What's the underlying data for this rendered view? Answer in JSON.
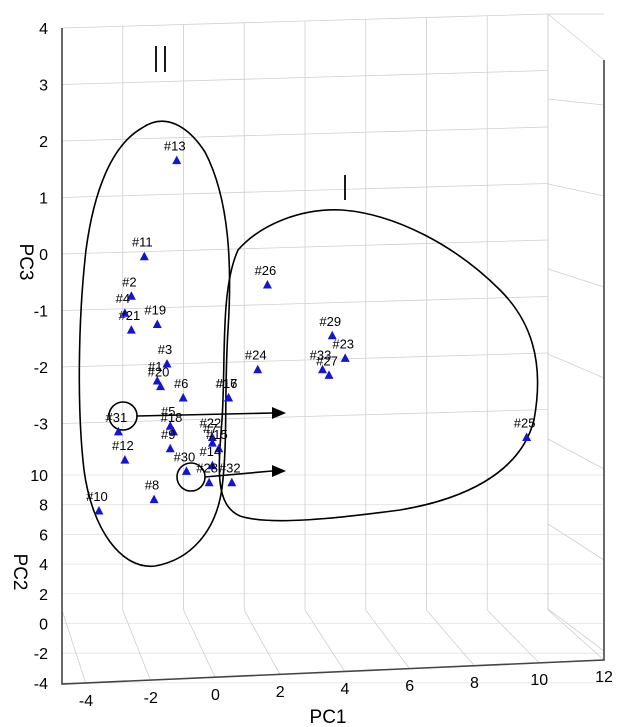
{
  "chart_data": {
    "type": "scatter",
    "title": "",
    "xlabel": "PC1",
    "ylabel": "PC3",
    "zlabel": "PC2",
    "marker": "triangle",
    "marker_color": "#1414d2",
    "x_ticks": [
      "-4",
      "-2",
      "0",
      "2",
      "4",
      "6",
      "8",
      "10",
      "12"
    ],
    "y_ticks": [
      "4",
      "3",
      "2",
      "1",
      "0",
      "-1",
      "-2",
      "-3"
    ],
    "z_ticks": [
      "10",
      "8",
      "6",
      "4",
      "2",
      "0",
      "-2",
      "-4"
    ],
    "xlim": [
      -4,
      12
    ],
    "ylim": [
      -4,
      4
    ],
    "zlim": [
      -4,
      10
    ],
    "grid": true,
    "groups": [
      {
        "label": "I",
        "members": [
          "#23",
          "#24",
          "#25",
          "#26",
          "#27",
          "#29",
          "#32",
          "#33"
        ]
      },
      {
        "label": "II",
        "members": [
          "#1",
          "#2",
          "#3",
          "#4",
          "#5",
          "#6",
          "#7",
          "#8",
          "#9",
          "#10",
          "#11",
          "#12",
          "#13",
          "#14",
          "#15",
          "#16",
          "#17",
          "#18",
          "#19",
          "#20",
          "#21",
          "#22",
          "#28",
          "#30",
          "#31"
        ]
      }
    ],
    "points": [
      {
        "label": "#13",
        "pc1": -1.2,
        "pc3": 1.9
      },
      {
        "label": "#11",
        "pc1": -2.2,
        "pc3": 0.2
      },
      {
        "label": "#2",
        "pc1": -2.6,
        "pc3": -0.5
      },
      {
        "label": "#4",
        "pc1": -2.8,
        "pc3": -0.8
      },
      {
        "label": "#19",
        "pc1": -1.8,
        "pc3": -1.0
      },
      {
        "label": "#21",
        "pc1": -2.6,
        "pc3": -1.1
      },
      {
        "label": "#26",
        "pc1": 1.6,
        "pc3": -0.3
      },
      {
        "label": "#29",
        "pc1": 3.6,
        "pc3": -1.2
      },
      {
        "label": "#23",
        "pc1": 4.0,
        "pc3": -1.6
      },
      {
        "label": "#33",
        "pc1": 3.3,
        "pc3": -1.8
      },
      {
        "label": "#27",
        "pc1": 3.5,
        "pc3": -1.9
      },
      {
        "label": "#24",
        "pc1": 1.3,
        "pc3": -1.8
      },
      {
        "label": "#3",
        "pc1": -1.5,
        "pc3": -1.7
      },
      {
        "label": "#1",
        "pc1": -1.8,
        "pc3": -2.0
      },
      {
        "label": "#20",
        "pc1": -1.7,
        "pc3": -2.1
      },
      {
        "label": "#6",
        "pc1": -1.0,
        "pc3": -2.3
      },
      {
        "label": "#17",
        "pc1": 0.4,
        "pc3": -2.3
      },
      {
        "label": "#16",
        "pc1": 0.4,
        "pc3": -2.3
      },
      {
        "label": "#5",
        "pc1": -1.4,
        "pc3": -2.8
      },
      {
        "label": "#18",
        "pc1": -1.3,
        "pc3": -2.9
      },
      {
        "label": "#22",
        "pc1": -0.1,
        "pc3": -3.0
      },
      {
        "label": "#7",
        "pc1": -0.1,
        "pc3": -3.1
      },
      {
        "label": "#15",
        "pc1": 0.1,
        "pc3": -3.2
      },
      {
        "label": "#9",
        "pc1": -1.4,
        "pc3": -3.2
      },
      {
        "label": "#31",
        "pc1": -3.0,
        "pc3": -2.9
      },
      {
        "label": "#12",
        "pc1": -2.8,
        "pc3": -3.4
      },
      {
        "label": "#14",
        "pc1": -0.1,
        "pc3": -3.5
      },
      {
        "label": "#30",
        "pc1": -0.9,
        "pc3": -3.6
      },
      {
        "label": "#28",
        "pc1": -0.2,
        "pc3": -3.8
      },
      {
        "label": "#32",
        "pc1": 0.5,
        "pc3": -3.8
      },
      {
        "label": "#10",
        "pc1": -3.6,
        "pc3": -4.3
      },
      {
        "label": "#8",
        "pc1": -1.9,
        "pc3": -4.1
      },
      {
        "label": "#25",
        "pc1": 9.6,
        "pc3": -3.0
      }
    ]
  }
}
